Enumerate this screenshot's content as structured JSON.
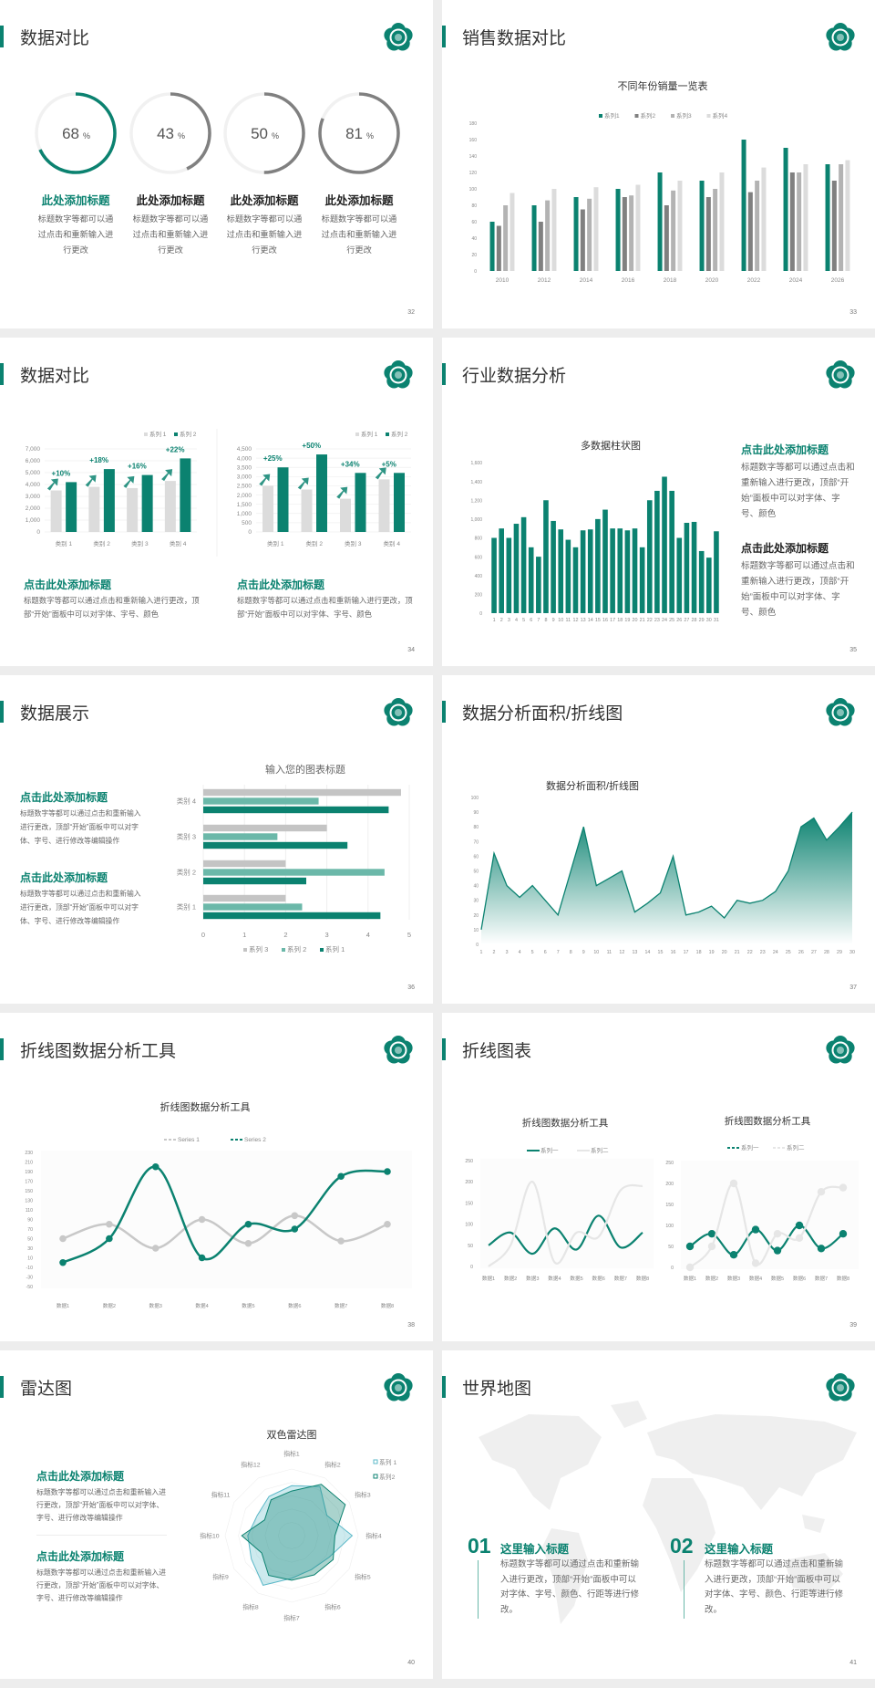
{
  "colors": {
    "accent": "#0b8270",
    "accent_light": "#6bb8a9",
    "gray_dark": "#808080",
    "gray_mid": "#b3b3b3",
    "gray_light": "#d6d6d6"
  },
  "logo_icon": "school-emblem",
  "s32": {
    "title": "数据对比",
    "page": "32",
    "rings": [
      {
        "value": 68,
        "label": "68",
        "unit": "%",
        "color": "#0b8270"
      },
      {
        "value": 43,
        "label": "43",
        "unit": "%",
        "color": "#808080"
      },
      {
        "value": 50,
        "label": "50",
        "unit": "%",
        "color": "#808080"
      },
      {
        "value": 81,
        "label": "81",
        "unit": "%",
        "color": "#808080"
      }
    ],
    "items": [
      {
        "heading": "此处添加标题",
        "desc": "标题数字等都可以通过点击和重新输入进行更改"
      },
      {
        "heading": "此处添加标题",
        "desc": "标题数字等都可以通过点击和重新输入进行更改"
      },
      {
        "heading": "此处添加标题",
        "desc": "标题数字等都可以通过点击和重新输入进行更改"
      },
      {
        "heading": "此处添加标题",
        "desc": "标题数字等都可以通过点击和重新输入进行更改"
      }
    ]
  },
  "s33": {
    "title": "销售数据对比",
    "page": "33"
  },
  "s34": {
    "title": "数据对比",
    "page": "34",
    "items": [
      {
        "heading": "点击此处添加标题",
        "desc": "标题数字等都可以通过点击和重新输入进行更改，顶部“开始”面板中可以对字体、字号、颜色"
      },
      {
        "heading": "点击此处添加标题",
        "desc": "标题数字等都可以通过点击和重新输入进行更改，顶部“开始”面板中可以对字体、字号、颜色"
      }
    ]
  },
  "s35": {
    "title": "行业数据分析",
    "page": "35",
    "items": [
      {
        "heading": "点击此处添加标题",
        "desc": "标题数字等都可以通过点击和重新输入进行更改，顶部“开始”面板中可以对字体、字号、颜色"
      },
      {
        "heading": "点击此处添加标题",
        "desc": "标题数字等都可以通过点击和重新输入进行更改，顶部“开始”面板中可以对字体、字号、颜色"
      }
    ]
  },
  "s36": {
    "title": "数据展示",
    "page": "36",
    "items": [
      {
        "heading": "点击此处添加标题",
        "desc": "标题数字等都可以通过点击和重新输入进行更改，顶部“开始”面板中可以对字体、字号、进行修改等编辑操作"
      },
      {
        "heading": "点击此处添加标题",
        "desc": "标题数字等都可以通过点击和重新输入进行更改，顶部“开始”面板中可以对字体、字号、进行修改等编辑操作"
      }
    ]
  },
  "s37": {
    "title": "数据分析面积/折线图",
    "page": "37"
  },
  "s38": {
    "title": "折线图数据分析工具",
    "page": "38"
  },
  "s39": {
    "title": "折线图表",
    "page": "39"
  },
  "s40": {
    "title": "雷达图",
    "page": "40",
    "items": [
      {
        "heading": "点击此处添加标题",
        "desc": "标题数字等都可以通过点击和重新输入进行更改，顶部“开始”面板中可以对字体、字号、进行修改等编辑操作"
      },
      {
        "heading": "点击此处添加标题",
        "desc": "标题数字等都可以通过点击和重新输入进行更改，顶部“开始”面板中可以对字体、字号、进行修改等编辑操作"
      }
    ]
  },
  "s41": {
    "title": "世界地图",
    "page": "41",
    "items": [
      {
        "number": "01",
        "heading": "这里输入标题",
        "desc": "标题数字等都可以通过点击和重新输入进行更改，顶部“开始”面板中可以对字体、字号、颜色、行距等进行修改。"
      },
      {
        "number": "02",
        "heading": "这里输入标题",
        "desc": "标题数字等都可以通过点击和重新输入进行更改，顶部“开始”面板中可以对字体、字号、颜色、行距等进行修改。"
      }
    ]
  },
  "chart_data": [
    {
      "type": "bar",
      "title": "不同年份销量一览表",
      "categories": [
        "2010",
        "2012",
        "2014",
        "2016",
        "2018",
        "2020",
        "2022",
        "2024",
        "2026"
      ],
      "ylim": [
        0,
        180
      ],
      "ytick": 20,
      "legend": "top",
      "series": [
        {
          "name": "系列1",
          "values": [
            60,
            80,
            90,
            100,
            120,
            110,
            160,
            150,
            130
          ],
          "color": "#0b8270"
        },
        {
          "name": "系列2",
          "values": [
            55,
            60,
            75,
            90,
            80,
            90,
            96,
            120,
            110
          ],
          "color": "#808080"
        },
        {
          "name": "系列3",
          "values": [
            80,
            86,
            88,
            92,
            98,
            100,
            110,
            120,
            130
          ],
          "color": "#b3b3b3"
        },
        {
          "name": "系列4",
          "values": [
            95,
            100,
            102,
            105,
            110,
            120,
            126,
            130,
            135
          ],
          "color": "#dcdcdc"
        }
      ]
    },
    {
      "type": "bar",
      "categories": [
        "类别 1",
        "类别 2",
        "类别 3",
        "类别 4"
      ],
      "ylim": [
        0,
        7000
      ],
      "ytick": 1000,
      "legend": "top-right",
      "growth_labels": [
        "+10%",
        "+18%",
        "+16%",
        "+22%"
      ],
      "series": [
        {
          "name": "系列 1",
          "values": [
            3500,
            3800,
            3700,
            4300
          ],
          "color": "#dcdcdc"
        },
        {
          "name": "系列 2",
          "values": [
            4200,
            5300,
            4800,
            6200
          ],
          "color": "#0b8270"
        }
      ]
    },
    {
      "type": "bar",
      "categories": [
        "类别 1",
        "类别 2",
        "类别 3",
        "类别 4"
      ],
      "ylim": [
        0,
        4500
      ],
      "ytick": 500,
      "legend": "top-right",
      "growth_labels": [
        "+25%",
        "+50%",
        "+34%",
        "+5%"
      ],
      "series": [
        {
          "name": "系列 1",
          "values": [
            2500,
            2300,
            1800,
            2850
          ],
          "color": "#dcdcdc"
        },
        {
          "name": "系列 2",
          "values": [
            3500,
            4200,
            3200,
            3200
          ],
          "color": "#0b8270"
        }
      ]
    },
    {
      "type": "bar",
      "title": "多数据柱状图",
      "categories": [
        "1",
        "2",
        "3",
        "4",
        "5",
        "6",
        "7",
        "8",
        "9",
        "10",
        "11",
        "12",
        "13",
        "14",
        "15",
        "16",
        "17",
        "18",
        "19",
        "20",
        "21",
        "22",
        "23",
        "24",
        "25",
        "26",
        "27",
        "28",
        "29",
        "30",
        "31"
      ],
      "ylim": [
        0,
        1600
      ],
      "ytick": 200,
      "series": [
        {
          "values": [
            800,
            900,
            800,
            950,
            1020,
            700,
            600,
            1200,
            980,
            890,
            780,
            700,
            880,
            890,
            1000,
            1100,
            900,
            900,
            880,
            900,
            700,
            1200,
            1300,
            1450,
            1300,
            800,
            960,
            970,
            660,
            590,
            870
          ],
          "color": "#0b8270"
        }
      ]
    },
    {
      "type": "bar",
      "orientation": "horizontal",
      "title": "输入您的图表标题",
      "categories": [
        "类别 1",
        "类别 2",
        "类别 3",
        "类别 4"
      ],
      "xlim": [
        0,
        5
      ],
      "xtick": 1,
      "legend": "bottom",
      "series": [
        {
          "name": "系列 3",
          "values": [
            2.0,
            2.0,
            3.0,
            4.8
          ],
          "color": "#c4c4c4"
        },
        {
          "name": "系列 2",
          "values": [
            2.4,
            4.4,
            1.8,
            2.8
          ],
          "color": "#6bb8a9"
        },
        {
          "name": "系列 1",
          "values": [
            4.3,
            2.5,
            3.5,
            4.5
          ],
          "color": "#0b8270"
        }
      ]
    },
    {
      "type": "area",
      "title": "数据分析面积/折线图",
      "x": [
        "1",
        "2",
        "3",
        "4",
        "5",
        "6",
        "7",
        "8",
        "9",
        "10",
        "11",
        "12",
        "13",
        "14",
        "15",
        "16",
        "17",
        "18",
        "19",
        "20",
        "21",
        "22",
        "23",
        "24",
        "25",
        "26",
        "27",
        "28",
        "29",
        "30"
      ],
      "ylim": [
        0,
        100
      ],
      "ytick": 10,
      "series": [
        {
          "values": [
            10,
            62,
            40,
            32,
            40,
            30,
            20,
            50,
            80,
            40,
            45,
            50,
            22,
            28,
            35,
            60,
            20,
            22,
            26,
            18,
            30,
            28,
            30,
            36,
            50,
            80,
            86,
            71,
            80,
            90
          ],
          "color": "#0b8270"
        }
      ]
    },
    {
      "type": "line",
      "title": "折线图数据分析工具",
      "x": [
        "数据1",
        "数据2",
        "数据3",
        "数据4",
        "数据5",
        "数据6",
        "数据7",
        "数据8"
      ],
      "ylim": [
        -50,
        230
      ],
      "ytick": 20,
      "smooth": true,
      "markers": true,
      "legend": "top",
      "series": [
        {
          "name": "Series 1",
          "values": [
            50,
            80,
            30,
            90,
            40,
            98,
            45,
            80
          ],
          "color": "#c8c8c8"
        },
        {
          "name": "Series 2",
          "values": [
            0,
            50,
            200,
            10,
            80,
            70,
            180,
            190
          ],
          "color": "#0b8270"
        }
      ]
    },
    {
      "type": "line",
      "title": "折线图数据分析工具",
      "x": [
        "数据1",
        "数据2",
        "数据3",
        "数据4",
        "数据5",
        "数据6",
        "数据7",
        "数据8"
      ],
      "ylim": [
        0,
        250
      ],
      "ytick": 50,
      "smooth": true,
      "markers": false,
      "legend": "top",
      "series": [
        {
          "name": "系列一",
          "values": [
            50,
            80,
            30,
            90,
            40,
            120,
            45,
            80
          ],
          "color": "#0b8270"
        },
        {
          "name": "系列二",
          "values": [
            0,
            50,
            200,
            10,
            80,
            70,
            180,
            190
          ],
          "color": "#e6e6e6"
        }
      ]
    },
    {
      "type": "line",
      "title": "折线图数据分析工具",
      "x": [
        "数据1",
        "数据2",
        "数据3",
        "数据4",
        "数据5",
        "数据6",
        "数据7",
        "数据8"
      ],
      "ylim": [
        0,
        250
      ],
      "ytick": 50,
      "smooth": true,
      "markers": true,
      "legend": "top",
      "series": [
        {
          "name": "系列一",
          "values": [
            50,
            80,
            30,
            90,
            40,
            100,
            45,
            80
          ],
          "color": "#0b8270"
        },
        {
          "name": "系列二",
          "values": [
            0,
            50,
            200,
            10,
            80,
            70,
            180,
            190
          ],
          "color": "#e6e6e6"
        }
      ]
    },
    {
      "type": "radar",
      "title": "双色雷达图",
      "axes": [
        "指标1",
        "指标2",
        "指标3",
        "指标4",
        "指标5",
        "指标6",
        "指标7",
        "指标8",
        "指标9",
        "指标10",
        "指标11",
        "指标12"
      ],
      "rlim": [
        0,
        100
      ],
      "legend": "top-right",
      "series": [
        {
          "name": "系列 1",
          "values": [
            75,
            85,
            61,
            91,
            65,
            59,
            64,
            86,
            70,
            66,
            60,
            68
          ],
          "color": "#5bb8c8"
        },
        {
          "name": "系列2",
          "values": [
            67,
            89,
            93,
            65,
            72,
            68,
            67,
            69,
            52,
            75,
            47,
            62
          ],
          "color": "#0b8270"
        }
      ]
    }
  ]
}
